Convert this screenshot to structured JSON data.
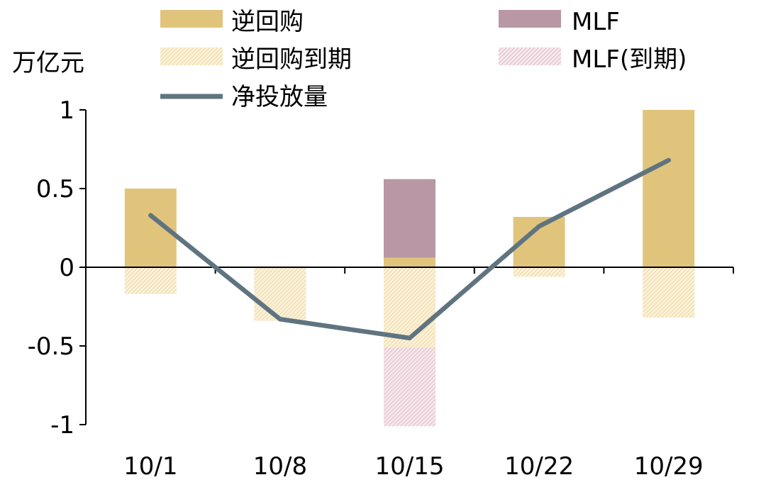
{
  "chart_data": {
    "type": "bar",
    "ylabel": "万亿元",
    "ylim": [
      -1,
      1
    ],
    "y_ticks": [
      1,
      0.5,
      0,
      -0.5,
      -1
    ],
    "y_tick_labels": [
      "1",
      "0.5",
      "0",
      "-0.5",
      "-1"
    ],
    "categories": [
      "10/1",
      "10/8",
      "10/15",
      "10/22",
      "10/29"
    ],
    "series": [
      {
        "name": "逆回购",
        "kind": "bar-positive",
        "color": "#E1C47C",
        "values": [
          0.5,
          0.005,
          0.06,
          0.32,
          1.0
        ]
      },
      {
        "name": "MLF",
        "kind": "bar-positive",
        "color": "#B997A4",
        "values": [
          0,
          0,
          0.5,
          0,
          0
        ]
      },
      {
        "name": "逆回购到期",
        "kind": "bar-negative",
        "color": "#F6E3B5",
        "values": [
          -0.17,
          -0.34,
          -0.51,
          -0.06,
          -0.32
        ]
      },
      {
        "name": "MLF(到期)",
        "kind": "bar-negative",
        "color": "#EBCDD6",
        "values": [
          0,
          0,
          -0.5,
          0,
          0
        ]
      },
      {
        "name": "净投放量",
        "kind": "line",
        "color": "#5F7480",
        "values": [
          0.33,
          -0.33,
          -0.45,
          0.26,
          0.68
        ]
      }
    ],
    "legend": {
      "position": "top",
      "items": [
        "逆回购",
        "MLF",
        "逆回购到期",
        "MLF(到期)",
        "净投放量"
      ]
    },
    "grid": false
  }
}
